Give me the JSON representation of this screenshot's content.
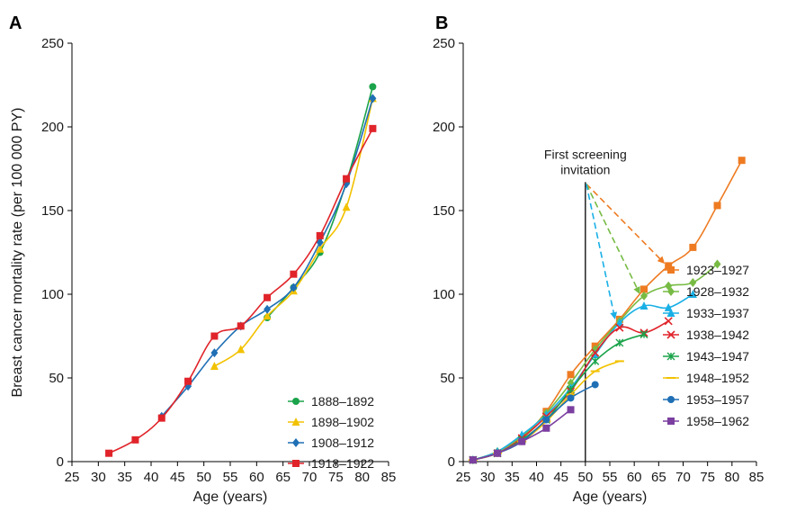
{
  "chart_data": [
    {
      "panel": "A",
      "type": "line",
      "xlabel": "Age (years)",
      "ylabel": "Breast cancer mortality rate (per 100 000 PY)",
      "xlim": [
        25,
        85
      ],
      "ylim": [
        0,
        250
      ],
      "xticks": [
        25,
        30,
        35,
        40,
        45,
        50,
        55,
        60,
        65,
        70,
        75,
        80,
        85
      ],
      "yticks": [
        0,
        50,
        100,
        150,
        200,
        250
      ],
      "legend_position": "bottom-right",
      "series": [
        {
          "name": "1888–1892",
          "color": "#1aa34a",
          "marker": "circle",
          "x": [
            62,
            67,
            72,
            77,
            82
          ],
          "y": [
            86,
            104,
            125,
            167,
            224
          ]
        },
        {
          "name": "1898–1902",
          "color": "#f2c200",
          "marker": "triangle",
          "x": [
            52,
            57,
            62,
            67,
            72,
            77,
            82
          ],
          "y": [
            57,
            67,
            87,
            102,
            127,
            152,
            217
          ]
        },
        {
          "name": "1908–1912",
          "color": "#1f6fb5",
          "marker": "diamond",
          "x": [
            42,
            47,
            52,
            57,
            62,
            67,
            72,
            77,
            82
          ],
          "y": [
            27,
            45,
            65,
            81,
            91,
            104,
            131,
            166,
            217
          ]
        },
        {
          "name": "1918–1922",
          "color": "#e0242a",
          "marker": "square",
          "x": [
            32,
            37,
            42,
            47,
            52,
            57,
            62,
            67,
            72,
            77,
            82
          ],
          "y": [
            5,
            13,
            26,
            48,
            75,
            81,
            98,
            112,
            135,
            169,
            199
          ]
        }
      ]
    },
    {
      "panel": "B",
      "type": "line",
      "xlabel": "Age (years)",
      "ylabel": "",
      "xlim": [
        25,
        85
      ],
      "ylim": [
        0,
        250
      ],
      "xticks": [
        25,
        30,
        35,
        40,
        45,
        50,
        55,
        60,
        65,
        70,
        75,
        80,
        85
      ],
      "yticks": [
        0,
        50,
        100,
        150,
        200,
        250
      ],
      "legend_position": "right",
      "annotation": {
        "text_line1": "First screening",
        "text_line2": "invitation",
        "x": 50,
        "line_top": 167,
        "arrows": [
          {
            "to_x": 66,
            "to_y": 119,
            "color": "#ee7b22"
          },
          {
            "to_x": 61,
            "to_y": 101,
            "color": "#77bb44"
          },
          {
            "to_x": 56,
            "to_y": 86,
            "color": "#1ab0e6"
          }
        ]
      },
      "series": [
        {
          "name": "1923–1927",
          "color": "#ee7b22",
          "marker": "square",
          "x": [
            27,
            32,
            37,
            42,
            47,
            52,
            57,
            62,
            67,
            72,
            77,
            82
          ],
          "y": [
            1,
            5,
            14,
            30,
            52,
            69,
            85,
            103,
            117,
            128,
            153,
            180
          ]
        },
        {
          "name": "1928–1932",
          "color": "#77bb44",
          "marker": "diamond",
          "x": [
            27,
            32,
            37,
            42,
            47,
            52,
            57,
            62,
            67,
            72,
            77
          ],
          "y": [
            1,
            6,
            15,
            29,
            47,
            67,
            84,
            99,
            105,
            107,
            118
          ]
        },
        {
          "name": "1933–1937",
          "color": "#1ab0e6",
          "marker": "triangle",
          "x": [
            27,
            32,
            37,
            42,
            47,
            52,
            57,
            62,
            67,
            72
          ],
          "y": [
            1,
            6,
            16,
            28,
            44,
            64,
            83,
            93,
            92,
            100
          ]
        },
        {
          "name": "1938–1942",
          "color": "#e0242a",
          "marker": "x",
          "x": [
            27,
            32,
            37,
            42,
            47,
            52,
            57,
            62,
            67
          ],
          "y": [
            1,
            5,
            14,
            27,
            42,
            65,
            80,
            77,
            84
          ]
        },
        {
          "name": "1943–1947",
          "color": "#1aa34a",
          "marker": "star",
          "x": [
            27,
            32,
            37,
            42,
            47,
            52,
            57,
            62
          ],
          "y": [
            1,
            5,
            13,
            25,
            43,
            60,
            71,
            76
          ]
        },
        {
          "name": "1948–1952",
          "color": "#f2c200",
          "marker": "dash",
          "x": [
            27,
            32,
            37,
            42,
            47,
            52,
            57
          ],
          "y": [
            1,
            5,
            12,
            24,
            40,
            54,
            60
          ]
        },
        {
          "name": "1953–1957",
          "color": "#1f6fb5",
          "marker": "circle",
          "x": [
            27,
            32,
            37,
            42,
            47,
            52
          ],
          "y": [
            1,
            5,
            12,
            25,
            38,
            46
          ]
        },
        {
          "name": "1958–1962",
          "color": "#7b3fa0",
          "marker": "square",
          "x": [
            27,
            32,
            37,
            42,
            47
          ],
          "y": [
            1,
            5,
            12,
            20,
            31
          ]
        }
      ]
    }
  ]
}
